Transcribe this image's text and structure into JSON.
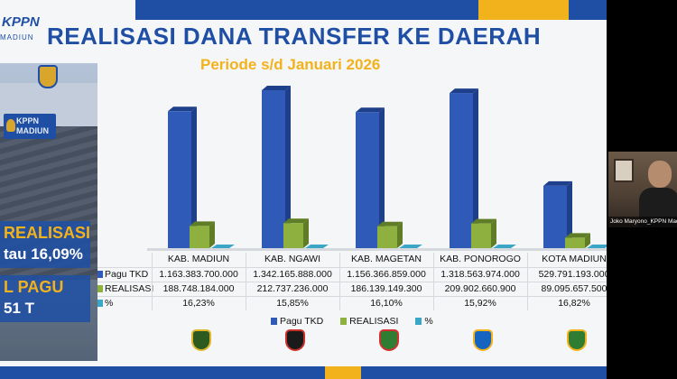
{
  "slide": {
    "logo_text": "KPPN",
    "logo_sub": "MADIUN",
    "title": "REALISASI DANA TRANSFER KE DAERAH",
    "subtitle": "Periode s/d Januari 2026",
    "photo_sign": "KPPN\nMADIUN",
    "stat_realisasi_label": "REALISASI",
    "stat_realisasi_pct": "tau 16,09%",
    "stat_pagu_label": "L PAGU",
    "stat_pagu_value": "51 T",
    "table": {
      "rows": [
        {
          "label": "Pagu TKD",
          "color": "#2f5ab7",
          "values": [
            "1.163.383.700.000",
            "1.342.165.888.000",
            "1.156.366.859.000",
            "1.318.563.974.000",
            "529.791.193.000"
          ]
        },
        {
          "label": "REALISASI",
          "color": "#8db03f",
          "values": [
            "188.748.184.000",
            "212.737.236.000",
            "186.139.149.300",
            "209.902.660.900",
            "89.095.657.500"
          ]
        },
        {
          "label": "%",
          "color": "#3aa7c7",
          "values": [
            "16,23%",
            "15,85%",
            "16,10%",
            "15,92%",
            "16,82%"
          ]
        }
      ]
    },
    "legend": {
      "pagu": "Pagu TKD",
      "realisasi": "REALISASI",
      "pct": "%"
    },
    "colors": {
      "brand_blue": "#1f4fa5",
      "brand_gold": "#f2b21c",
      "pagu": "#2f5ab7",
      "realisasi": "#8db03f",
      "pct": "#3aa7c7"
    },
    "emblems": [
      "kab-madiun-emblem",
      "kab-ngawi-emblem",
      "kab-magetan-emblem",
      "kab-ponorogo-emblem",
      "kota-madiun-emblem"
    ]
  },
  "chart_data": {
    "type": "bar",
    "title": "REALISASI DANA TRANSFER KE DAERAH",
    "subtitle": "Periode s/d Januari 2026",
    "categories": [
      "KAB. MADIUN",
      "KAB. NGAWI",
      "KAB. MAGETAN",
      "KAB. PONOROGO",
      "KOTA MADIUN"
    ],
    "series": [
      {
        "name": "Pagu TKD",
        "values": [
          1163383700000,
          1342165888000,
          1156366859000,
          1318563974000,
          529791193000
        ]
      },
      {
        "name": "REALISASI",
        "values": [
          188748184000,
          212737236000,
          186139149300,
          209902660900,
          89095657500
        ]
      },
      {
        "name": "%",
        "values": [
          16.23,
          15.85,
          16.1,
          15.92,
          16.82
        ]
      }
    ],
    "legend_position": "bottom",
    "grid": false
  },
  "call": {
    "participant_name": "Joko Maryono_KPPN Madiun"
  }
}
